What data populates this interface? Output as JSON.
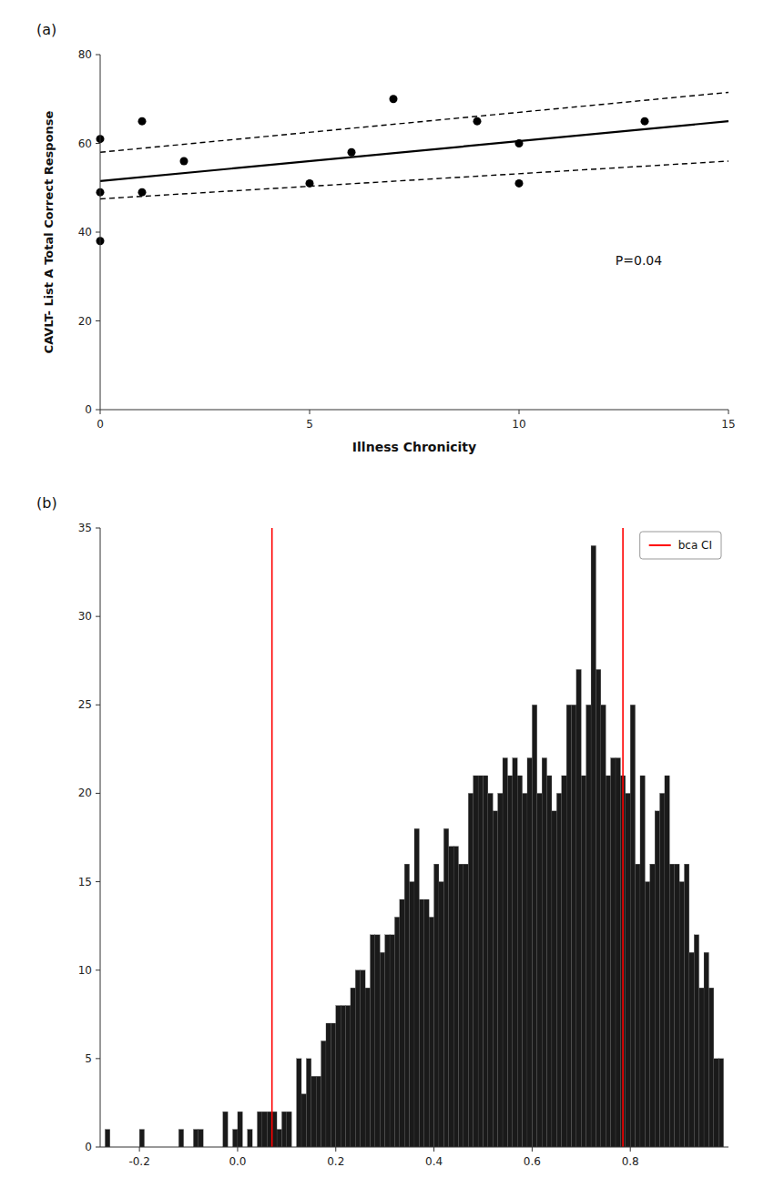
{
  "chart_data": [
    {
      "type": "scatter",
      "title": "(a)",
      "x_label": "Illness Chronicity",
      "y_label": "CAVLT- List A Total Correct Response",
      "annotations": [
        "P=0.04"
      ],
      "series": [
        {
          "type": "scatter",
          "color": "#000000",
          "x": [
            0,
            0,
            0,
            1,
            1,
            2,
            5,
            6,
            7,
            9,
            10,
            10,
            13
          ],
          "values": [
            38,
            49,
            61,
            49,
            65,
            56,
            51,
            58,
            70,
            65,
            60,
            51,
            65
          ]
        },
        {
          "type": "line",
          "color": "#000000",
          "line_style": "solid",
          "x": [
            0,
            15
          ],
          "values": [
            51.5,
            65.0
          ]
        },
        {
          "type": "line",
          "color": "#000000",
          "line_style": "dashed",
          "x": [
            0,
            15
          ],
          "values": [
            58.0,
            71.5
          ]
        },
        {
          "type": "line",
          "color": "#000000",
          "line_style": "dashed",
          "x": [
            0,
            15
          ],
          "values": [
            47.5,
            56.0
          ]
        }
      ],
      "xlim": [
        0,
        15
      ],
      "ylim": [
        0,
        80
      ],
      "xticks": [
        0,
        5,
        10,
        15
      ],
      "yticks": [
        0,
        20,
        40,
        60,
        80
      ],
      "grid": false
    },
    {
      "type": "histogram",
      "title": "(b)",
      "bins": [
        -0.27,
        -0.26,
        -0.25,
        -0.24,
        -0.23,
        -0.22,
        -0.21,
        -0.2,
        -0.19,
        -0.18,
        -0.17,
        -0.16,
        -0.15,
        -0.14,
        -0.13,
        -0.12,
        -0.11,
        -0.1,
        -0.09,
        -0.08,
        -0.07,
        -0.06,
        -0.05,
        -0.04,
        -0.03,
        -0.02,
        -0.01,
        0.0,
        0.01,
        0.02,
        0.03,
        0.04,
        0.05,
        0.06,
        0.07,
        0.08,
        0.09,
        0.1,
        0.11,
        0.12,
        0.13,
        0.14,
        0.15,
        0.16,
        0.17,
        0.18,
        0.19,
        0.2,
        0.21,
        0.22,
        0.23,
        0.24,
        0.25,
        0.26,
        0.27,
        0.28,
        0.29,
        0.3,
        0.31,
        0.32,
        0.33,
        0.34,
        0.35,
        0.36,
        0.37,
        0.38,
        0.39,
        0.4,
        0.41,
        0.42,
        0.43,
        0.44,
        0.45,
        0.46,
        0.47,
        0.48,
        0.49,
        0.5,
        0.51,
        0.52,
        0.53,
        0.54,
        0.55,
        0.56,
        0.57,
        0.58,
        0.59,
        0.6,
        0.61,
        0.62,
        0.63,
        0.64,
        0.65,
        0.66,
        0.67,
        0.68,
        0.69,
        0.7,
        0.71,
        0.72,
        0.73,
        0.74,
        0.75,
        0.76,
        0.77,
        0.78,
        0.79,
        0.8,
        0.81,
        0.82,
        0.83,
        0.84,
        0.85,
        0.86,
        0.87,
        0.88,
        0.89,
        0.9,
        0.91,
        0.92,
        0.93,
        0.94,
        0.95,
        0.96,
        0.97,
        0.98,
        0.99
      ],
      "series": [
        {
          "type": "bar",
          "color": "#1a1a1a",
          "values": [
            1,
            0,
            0,
            0,
            0,
            0,
            0,
            1,
            0,
            0,
            0,
            0,
            0,
            0,
            0,
            1,
            0,
            0,
            1,
            1,
            0,
            0,
            0,
            0,
            2,
            0,
            1,
            2,
            0,
            1,
            0,
            2,
            2,
            2,
            2,
            1,
            2,
            2,
            0,
            5,
            3,
            5,
            4,
            4,
            6,
            7,
            7,
            8,
            8,
            8,
            9,
            10,
            10,
            9,
            12,
            12,
            11,
            12,
            12,
            13,
            14,
            16,
            15,
            18,
            14,
            14,
            13,
            16,
            15,
            18,
            17,
            17,
            16,
            16,
            20,
            21,
            21,
            21,
            20,
            19,
            20,
            22,
            21,
            22,
            21,
            20,
            22,
            25,
            20,
            22,
            21,
            19,
            20,
            21,
            25,
            25,
            27,
            21,
            25,
            34,
            27,
            25,
            21,
            22,
            22,
            21,
            20,
            25,
            16,
            21,
            15,
            16,
            19,
            20,
            21,
            16,
            16,
            15,
            16,
            11,
            12,
            9,
            11,
            9,
            5,
            5
          ]
        },
        {
          "type": "vline",
          "name": "bca CI",
          "color": "#ff0000",
          "x": [
            0.07,
            0.785
          ]
        }
      ],
      "xlim": [
        -0.28,
        1.0
      ],
      "ylim": [
        0,
        35
      ],
      "xticks": [
        -0.2,
        {
          "value": 0.0,
          "label": "0.0"
        },
        0.2,
        0.4,
        0.6,
        0.8
      ],
      "yticks": [
        0,
        5,
        10,
        15,
        20,
        25,
        30,
        35
      ],
      "legend": "upper right",
      "grid": false
    }
  ]
}
